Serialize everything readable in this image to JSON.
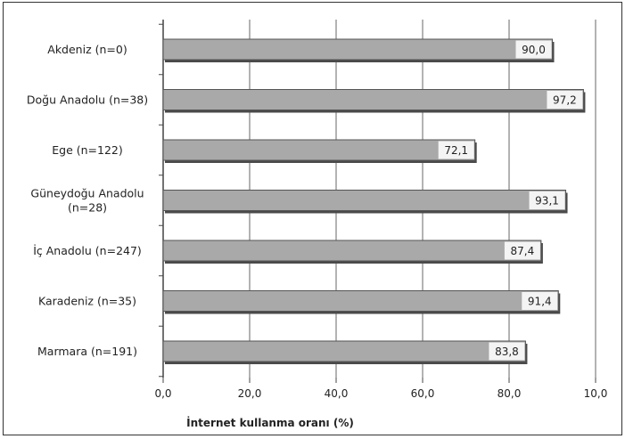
{
  "chart_data": {
    "type": "bar",
    "orientation": "horizontal",
    "categories": [
      [
        "Akdeniz (n=0)"
      ],
      [
        "Doğu Anadolu (n=38)"
      ],
      [
        "Ege (n=122)"
      ],
      [
        "Güneydoğu Anadolu",
        "(n=28)"
      ],
      [
        "İç Anadolu (n=247)"
      ],
      [
        "Karadeniz (n=35)"
      ],
      [
        "Marmara (n=191)"
      ]
    ],
    "values": [
      90.0,
      97.2,
      72.1,
      93.1,
      87.4,
      91.4,
      83.8
    ],
    "value_labels": [
      "90,0",
      "97,2",
      "72,1",
      "93,1",
      "87,4",
      "91,4",
      "83,8"
    ],
    "xticks": [
      "0,0",
      "20,0",
      "40,0",
      "60,0",
      "80,0",
      "10,0"
    ],
    "xlim": [
      0,
      100
    ],
    "xlabel": "İnternet kullanma oranı (%)",
    "grid": "vertical",
    "legend": "none",
    "colors": {
      "bar_fill": "#a9a9a9",
      "bar_stroke": "#555555",
      "bar_shadow": "#4a4a4a",
      "label_box": "#f4f4f4",
      "grid": "#9a9a9a",
      "frame": "#333333",
      "axis": "#444444",
      "text": "#222222"
    }
  }
}
